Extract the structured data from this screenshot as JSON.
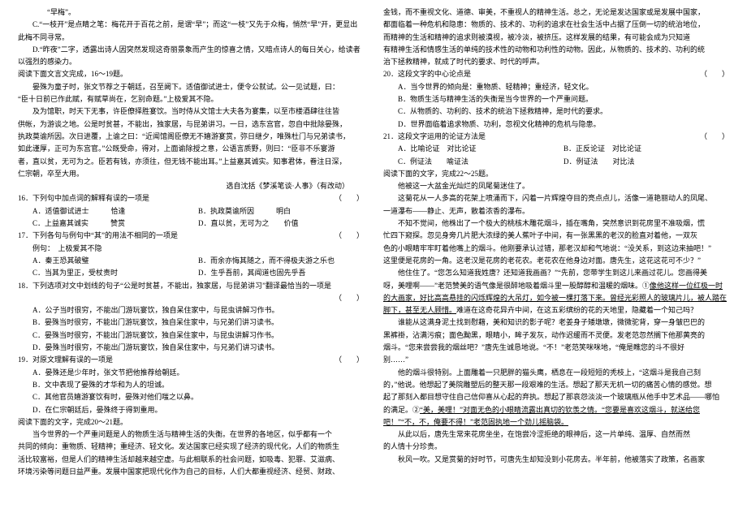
{
  "left": {
    "p1": "“早梅”。",
    "p2": "C.“一枝开”是点睛之笔：梅花开于百花之前，是谓“早”；而这“一枝”又先于众梅，悄然“早”开，更显出此梅不同寻常。",
    "p3": "D.“昨夜”二字，透露出诗人因突然发现这奇丽景象而产生的惊喜之情，又暗点诗人的每日关心，给读者以强烈的感染力。",
    "p4": "阅读下面文言文完成，16～19题。",
    "p5": "晏殊为童子时，张文节荐之于朝廷，召至阙下。适值御试进士，便令公就试。公一见试题，曰：",
    "p6": "“臣十日前已作此赋，有赋草尚在，乞别命题。”上极爱其不隐。",
    "p7": "及为馆职，时天下无事，许臣僚择胜宴饮。当时侍从文馆士大夫各为宴集，以至市楼酒肆往往皆",
    "p7b": "供帐，为游谈之地。公是时贫甚，不能出，独家居，与昆弟讲习。一日，选东宫官，忽自中批除晏殊，",
    "p7c": "执政莫谕所因。次日进覆，上谕之曰：“近闻馆阁臣僚无不嬉游宴赏，弥日继夕，唯殊杜门与兄弟读书，",
    "p7d": "如此谨厚，正可为东宫官。”公既受命，得对，上面谕除授之意，公语言质野，则曰：“臣非不乐宴游",
    "p7e": "者，直以贫，无可为之。臣若有钱，亦须往，但无钱不能出耳。”上益嘉其诚实。知事君体，眷注日深，",
    "p7f": "仁宗朝，卒至大用。",
    "src": "选自沈括《梦溪笔谈·人事》（有改动）",
    "q16": {
      "stem": "16．下列句中加点词的解释有误的一项是",
      "a": "A．适值御试进士　　　恰逢",
      "b": "B．执政莫谕所因　　　明白",
      "c": "C．上益嘉其诚实　　　赞赏",
      "d": "D．直以贫，无可为之　　价值"
    },
    "q17": {
      "stem": "17．下列各句与例句中“其”的用法不相同的一项是",
      "ex": "例句：　上极爱其不隐",
      "a": "A．秦王恐其破璧",
      "b": "B．而余亦悔其随之，而不得极夫游之乐也",
      "c": "C．当其为里正，受杖责时",
      "d": "D．生乎吾前，其闻道也固先乎吾"
    },
    "q18": {
      "stem": "18．下列选项对文中划线的句子“公是时贫甚，不能出，独家居，与昆弟讲习”翻译最恰当的一项是",
      "a": "A．公子当时很穷，不能出门游玩宴饮，独自呆住家中，与昆虫讲解习作书。",
      "b": "B．晏殊当时很穷，不能出门游玩宴饮，独自呆住家中，与兄弟们讲习读书。",
      "c": "C．晏殊当时很穷，不能出门游玩宴饮，独自呆住家中，与昆虫讲解习作书。",
      "d": "D．晏殊当时很穷，不能出门游玩宴饮，独自呆住家中，与兄弟们讲习读书。"
    },
    "q19": {
      "stem": "19．对原文理解有误的一项是",
      "a": "A．晏殊还是少年时，张文节把他推荐给朝廷。",
      "b": "B．文中表现了晏殊的才华和为人的坦诚。",
      "c": "C．其他官员嬉游宴饮有时，晏殊对他们嗤之以鼻。",
      "d": "D．在仁宗朝廷后，晏殊终于得到重用。"
    },
    "p8": "阅读下面的文字，完成20～21题。",
    "p9": "当今世界的一个严重问题是人的物质生活与精神生活的失衡。在世界的各地区，似乎都有一个",
    "p9b": "共同的倾向：重物质、轻精神；重经济、轻文化。发达国家已经实现了经济的现代化，人们的物质生",
    "p9c": "活比较富裕，但是人们的精神生活却越来越空虚。与此相联系的社会问题，如吸毒、犯罪、艾滋病、",
    "p9d": "环境污染等问题日益严重。发展中国家把现代化作为自己的目标，人们大都重视经济、经贸、财政、"
  },
  "right": {
    "p1": "金钱，而不重视文化、道德、审美，不重视人的精神生活。总之，无论是发达国家或是发展中国家，",
    "p1b": "都面临着一种危机和隐患：物质的、技术的、功利的追求在社会生活中占据了压倒一切的统治地位，",
    "p1c": "而精神的生活和精神的追求则被漠视，被冷淡，被挤压。这样发展的结果，有可能会成为只知道",
    "p1d": "有精神生活和情感生活的单纯的技术性的动物和功利性的动物。因此，从物质的、技术的、功利的统",
    "p1e": "治下拯救精神，就成了时代的要求、时代的呼声。",
    "q20": {
      "stem": "20．这段文字的中心论点是",
      "a": "A．当今世界的倾向是：重物质、轻精神；重经济，轻文化。",
      "b": "B．物质生活与精神生活的失衡是当今世界的一个严重问题。",
      "c": "C．从物质的、功利的、技术的统治下拯救精神，是时代的要求。",
      "d": "D．世界面临着追求物质、功利，忽视文化精神的危机与隐患。"
    },
    "q21": {
      "stem": "21．这段文字运用的论证方法是",
      "a": "A．比喻论证　对比论证",
      "b": "B．正反论证　对比论证",
      "c": "C．例证法　　喻证法",
      "d": "D．例证法　　对比法"
    },
    "p2": "阅读下面的文字，完成22～25题。",
    "p3": "他被这一大盆金光灿烂的凤尾菊迷住了。",
    "p4": "这菊花从一人多高的花架上喷涌而下，闪着一片辉煌夺目的亮点点儿，活像一道艳丽动人的凤尾、",
    "p4b": "一道瀑布——静止、无声，散着浓香的瀑布。",
    "p5": "不知不觉间，他株出了一个极大的桃核木雕花烟斗，插在嘴角，突然意识到花房里不准吸烟，慌",
    "p5b": "忙四下窥探。忽见身旁几片肥大浓绿的美人蕉叶子中间，有一张黑黑的老汉的脸直对着他，一双灰",
    "p5c": "色的小眼睛牢牢盯着他嘴上的烟斗。他刚要承认过错，那老汉却和气地说：“没关系，到这边来抽吧！”",
    "p5d": "这里便是花房的一角。这老汉是花房的老花农。老花农在他身边对面。唐先生，这花这花可不少？”",
    "p6": "他住住了。“您怎么知道我姓唐？还知道我画画？”“先前，您带学生到这儿来画过花儿。您画得美",
    "p6b": "呀，美哩啊——”老范赞美的语气像是很醉地吸着烟斗里一股醇醇和温暖的烟味。①",
    "p6c_u": "像他这样一位红极一时的大画家，好比高高悬挂的闪烁辉煌的大吊灯，如今被一棵打落下来。曾经光彩照人的玻璃片儿，被人踏在脚下，甚至无人顾惜。",
    "p6d": "难道在这奇花异卉中间，在这五彩缤纷的花的天地里，隐藏着一个知己吗？",
    "p7": "谁能从这满身泥土找到慰藉，美和知识的影子呢？老姜身子矮墩墩，微微驼背，穿一身皱巴巴的",
    "p7b": "黑裤褂，沾满污痕；面色黝黑，眼睛小，眸子发灰，动作迟缓而不灵便。发老范忽然搁下他那黄亮的",
    "p7c": "烟斗。“您来尝尝我的烟丝吧？”唐先生诚恳地说。“不！”老范笑咪咪地，“俺是瞧您的斗不很好",
    "p7d": "别……”",
    "p8": "他的烟斗很特别。上面雕着一只肥胖的猫头鹰，栖息在一段短短的秃枝上，“这烟斗是我自己刻",
    "p8b": "的，”他说。他想起了美院雕塑后的整天那一段艰难的生活。想起了那天无机一切的痛苦心情的感觉。想",
    "p8c": "起了那刻入都目想守住自己信仰喜从心起的弃执。想起了那哀怨淡淡一个玻璃瓶从他手中艺术品——哪怕",
    "p8d": "的满足。②",
    "p8e_u": "“美，美哩！”对面无色的小眼睛流露出真切的钦羡之情。“您要是喜欢这烟斗，就送给您吧！”“不，不，俺要不得！”老范固执地一个劲儿摇脑袋。",
    "p9": "从此以后，唐先生常来花房坐坐，在饱尝冷涩拒绝的眼神后，这一片单纯、温厚、自然而然",
    "p9b": "的人情十分珍贵。",
    "p10": "秋风一吹。又是赏菊的好时节，可唐先生却知没到小花房去。半年前，他被落实了政策，名画家"
  }
}
